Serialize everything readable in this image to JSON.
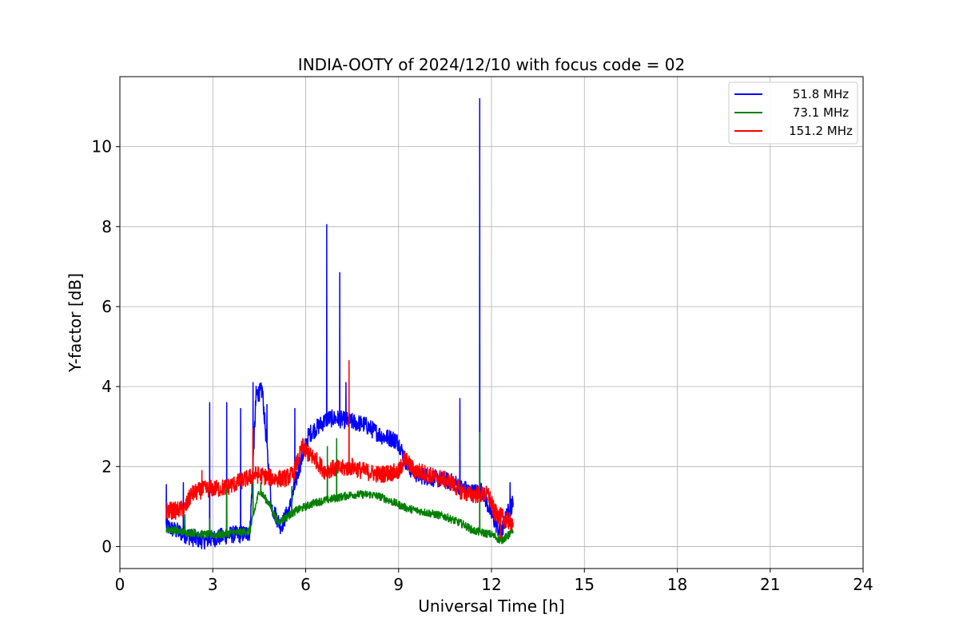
{
  "chart_data": {
    "type": "line",
    "title": "INDIA-OOTY of 2024/12/10 with focus code = 02",
    "xlabel": "Universal Time [h]",
    "ylabel": "Y-factor [dB]",
    "xlim": [
      0,
      24
    ],
    "ylim": [
      -0.55,
      11.75
    ],
    "xticks": [
      0,
      3,
      6,
      9,
      12,
      15,
      18,
      21,
      24
    ],
    "yticks": [
      0,
      2,
      4,
      6,
      8,
      10
    ],
    "grid": true,
    "legend_position": "top-right",
    "series": [
      {
        "name": "51.8 MHz",
        "color": "#0000ff",
        "x": [
          1.5,
          1.8,
          2.1,
          2.4,
          2.7,
          3.0,
          3.3,
          3.6,
          3.9,
          4.2,
          4.4,
          4.6,
          4.9,
          5.2,
          5.5,
          5.8,
          6.1,
          6.4,
          6.7,
          7.0,
          7.3,
          7.6,
          7.9,
          8.2,
          8.5,
          8.8,
          9.0,
          9.3,
          9.6,
          9.9,
          10.2,
          10.5,
          10.8,
          11.1,
          11.4,
          11.7,
          12.0,
          12.3,
          12.5,
          12.7
        ],
        "y": [
          0.5,
          0.4,
          0.3,
          0.2,
          0.15,
          0.2,
          0.25,
          0.3,
          0.3,
          0.35,
          3.8,
          3.9,
          1.0,
          0.5,
          1.0,
          2.0,
          2.8,
          3.0,
          3.2,
          3.2,
          3.15,
          3.1,
          3.05,
          2.9,
          2.75,
          2.7,
          2.6,
          2.0,
          1.8,
          1.75,
          1.7,
          1.65,
          1.6,
          1.45,
          1.35,
          1.4,
          0.8,
          0.3,
          0.8,
          1.1
        ],
        "spikes": [
          [
            1.5,
            1.55
          ],
          [
            2.05,
            1.6
          ],
          [
            2.9,
            3.6
          ],
          [
            3.45,
            3.6
          ],
          [
            3.9,
            3.45
          ],
          [
            4.3,
            4.1
          ],
          [
            4.75,
            3.55
          ],
          [
            5.65,
            3.45
          ],
          [
            6.68,
            8.05
          ],
          [
            7.1,
            6.85
          ],
          [
            7.3,
            4.1
          ],
          [
            10.98,
            3.7
          ],
          [
            11.62,
            11.2
          ],
          [
            12.6,
            1.6
          ]
        ]
      },
      {
        "name": "73.1 MHz",
        "color": "#008000",
        "x": [
          1.5,
          1.8,
          2.1,
          2.4,
          2.7,
          3.0,
          3.3,
          3.6,
          3.9,
          4.2,
          4.5,
          4.8,
          5.1,
          5.4,
          5.7,
          6.0,
          6.3,
          6.6,
          6.9,
          7.2,
          7.5,
          7.8,
          8.1,
          8.4,
          8.7,
          9.0,
          9.3,
          9.6,
          9.9,
          10.2,
          10.5,
          10.8,
          11.1,
          11.4,
          11.7,
          12.0,
          12.3,
          12.5,
          12.7
        ],
        "y": [
          0.45,
          0.4,
          0.35,
          0.35,
          0.3,
          0.3,
          0.3,
          0.35,
          0.35,
          0.4,
          1.4,
          1.1,
          0.6,
          0.75,
          0.9,
          1.0,
          1.1,
          1.15,
          1.2,
          1.25,
          1.3,
          1.3,
          1.3,
          1.25,
          1.15,
          1.05,
          0.95,
          0.9,
          0.85,
          0.8,
          0.75,
          0.65,
          0.55,
          0.4,
          0.35,
          0.3,
          0.15,
          0.25,
          0.4
        ],
        "spikes": [
          [
            2.1,
            0.8
          ],
          [
            2.9,
            0.7
          ],
          [
            3.45,
            1.6
          ],
          [
            4.3,
            2.9
          ],
          [
            4.55,
            1.6
          ],
          [
            5.55,
            1.5
          ],
          [
            6.7,
            2.5
          ],
          [
            7.0,
            2.7
          ],
          [
            11.62,
            2.85
          ],
          [
            12.3,
            0.6
          ]
        ]
      },
      {
        "name": "151.2 MHz",
        "color": "#ff0000",
        "x": [
          1.5,
          1.8,
          2.1,
          2.3,
          2.6,
          2.9,
          3.2,
          3.5,
          3.8,
          4.1,
          4.4,
          4.7,
          5.0,
          5.3,
          5.6,
          5.9,
          6.1,
          6.3,
          6.6,
          6.9,
          7.2,
          7.5,
          7.8,
          8.1,
          8.4,
          8.7,
          9.0,
          9.2,
          9.5,
          9.8,
          10.1,
          10.4,
          10.7,
          11.0,
          11.3,
          11.6,
          11.9,
          12.1,
          12.3,
          12.5,
          12.7
        ],
        "y": [
          0.9,
          0.9,
          0.95,
          1.3,
          1.4,
          1.45,
          1.45,
          1.5,
          1.6,
          1.7,
          1.8,
          1.75,
          1.7,
          1.7,
          1.8,
          2.5,
          2.3,
          2.2,
          1.9,
          1.95,
          1.95,
          2.0,
          1.9,
          1.85,
          1.8,
          1.85,
          1.85,
          2.2,
          1.9,
          1.85,
          1.75,
          1.7,
          1.6,
          1.4,
          1.3,
          1.3,
          1.3,
          0.85,
          0.75,
          0.65,
          0.6
        ],
        "spikes": [
          [
            2.65,
            1.9
          ],
          [
            4.3,
            2.95
          ],
          [
            7.4,
            4.65
          ],
          [
            12.3,
            0.2
          ]
        ]
      }
    ]
  }
}
